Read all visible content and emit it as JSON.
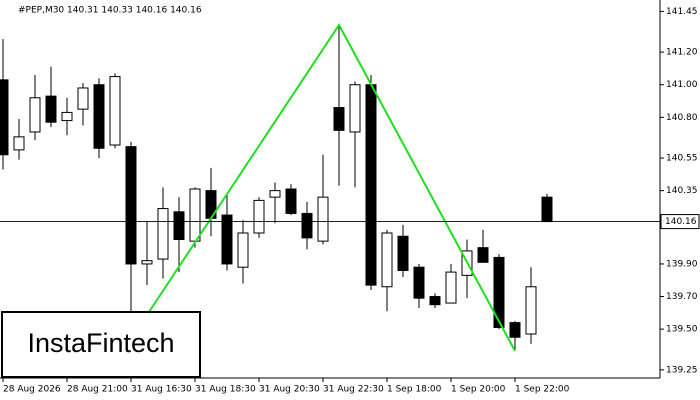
{
  "header": "#PEP,M30  140.31 140.33 140.16 140.16",
  "logo": "InstaFintech",
  "chart_data": {
    "type": "candlestick",
    "categories": [
      "28 Aug 2026",
      null,
      null,
      null,
      "28 Aug 21:00",
      null,
      null,
      null,
      "31 Aug 16:30",
      null,
      null,
      null,
      "31 Aug 18:30",
      null,
      null,
      null,
      "31 Aug 20:30",
      null,
      null,
      null,
      "31 Aug 22:30",
      null,
      null,
      null,
      "1 Sep 18:00",
      null,
      null,
      null,
      "1 Sep 20:00",
      null,
      null,
      null,
      "1 Sep 22:00",
      null,
      null
    ],
    "open": [
      141.03,
      140.6,
      140.71,
      140.93,
      140.78,
      140.85,
      141.0,
      140.63,
      140.62,
      139.9,
      139.93,
      140.22,
      140.04,
      140.35,
      140.2,
      139.88,
      140.09,
      140.31,
      140.36,
      140.21,
      140.04,
      140.86,
      140.71,
      141.0,
      139.76,
      140.07,
      139.88,
      139.7,
      139.66,
      139.83,
      140.0,
      139.94,
      139.54,
      139.47,
      140.31
    ],
    "high": [
      141.28,
      140.79,
      141.06,
      141.11,
      140.92,
      141.01,
      141.04,
      141.07,
      140.65,
      140.16,
      140.37,
      140.31,
      140.37,
      140.49,
      140.33,
      140.17,
      140.31,
      140.4,
      140.39,
      140.28,
      140.57,
      141.37,
      141.02,
      141.06,
      140.11,
      140.14,
      139.9,
      139.72,
      139.9,
      140.05,
      140.11,
      139.96,
      139.55,
      139.88,
      140.33
    ],
    "low": [
      140.48,
      140.54,
      140.66,
      140.74,
      140.69,
      140.75,
      140.55,
      140.61,
      139.4,
      139.77,
      139.81,
      139.85,
      140.0,
      140.07,
      139.86,
      139.78,
      140.06,
      140.15,
      140.2,
      139.99,
      140.02,
      140.38,
      140.37,
      139.74,
      139.61,
      139.82,
      139.63,
      139.63,
      139.66,
      139.69,
      139.91,
      139.5,
      139.37,
      139.41,
      140.16
    ],
    "close": [
      140.57,
      140.68,
      140.92,
      140.77,
      140.83,
      140.98,
      140.61,
      141.05,
      139.9,
      139.92,
      140.24,
      140.05,
      140.36,
      140.18,
      139.9,
      140.09,
      140.29,
      140.35,
      140.21,
      140.06,
      140.31,
      140.72,
      141.0,
      139.77,
      140.09,
      139.86,
      139.69,
      139.65,
      139.85,
      139.98,
      139.91,
      139.51,
      139.45,
      139.76,
      140.16
    ],
    "current_price": 140.16,
    "ylim": [
      139.2,
      141.52
    ],
    "yticks": [
      141.45,
      {
        "value": 141.2,
        "label": "141.20"
      },
      {
        "value": 141,
        "label": "141.00"
      },
      {
        "value": 140.8,
        "label": "140.80"
      },
      140.55,
      140.35,
      {
        "value": 139.9,
        "label": "139.90"
      },
      {
        "value": 139.7,
        "label": "139.70"
      },
      {
        "value": 139.5,
        "label": "139.50"
      },
      139.25
    ],
    "up_color": "#ffffff",
    "down_color": "#000000"
  }
}
